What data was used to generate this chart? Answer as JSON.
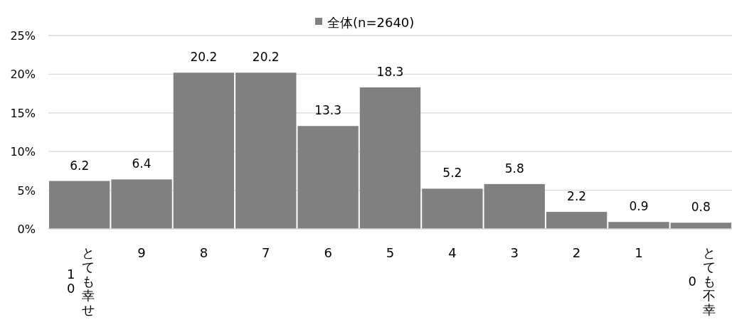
{
  "chart_data": {
    "type": "bar",
    "categories": [
      "10 とても幸せ",
      "9",
      "8",
      "7",
      "6",
      "5",
      "4",
      "3",
      "2",
      "1",
      "0 とても不幸"
    ],
    "series": [
      {
        "name": "全体(n=2640)",
        "color": "#808080",
        "values": [
          6.2,
          6.4,
          20.2,
          20.2,
          13.3,
          18.3,
          5.2,
          5.8,
          2.2,
          0.9,
          0.8
        ]
      }
    ],
    "ylim": [
      0,
      25
    ],
    "yticks": [
      {
        "value": 0,
        "label": "0%"
      },
      {
        "value": 5,
        "label": "5%"
      },
      {
        "value": 10,
        "label": "10%"
      },
      {
        "value": 15,
        "label": "15%"
      },
      {
        "value": 20,
        "label": "20%"
      },
      {
        "value": 25,
        "label": "25%"
      }
    ],
    "grid": "y",
    "legend": "top",
    "data_labels": true
  }
}
